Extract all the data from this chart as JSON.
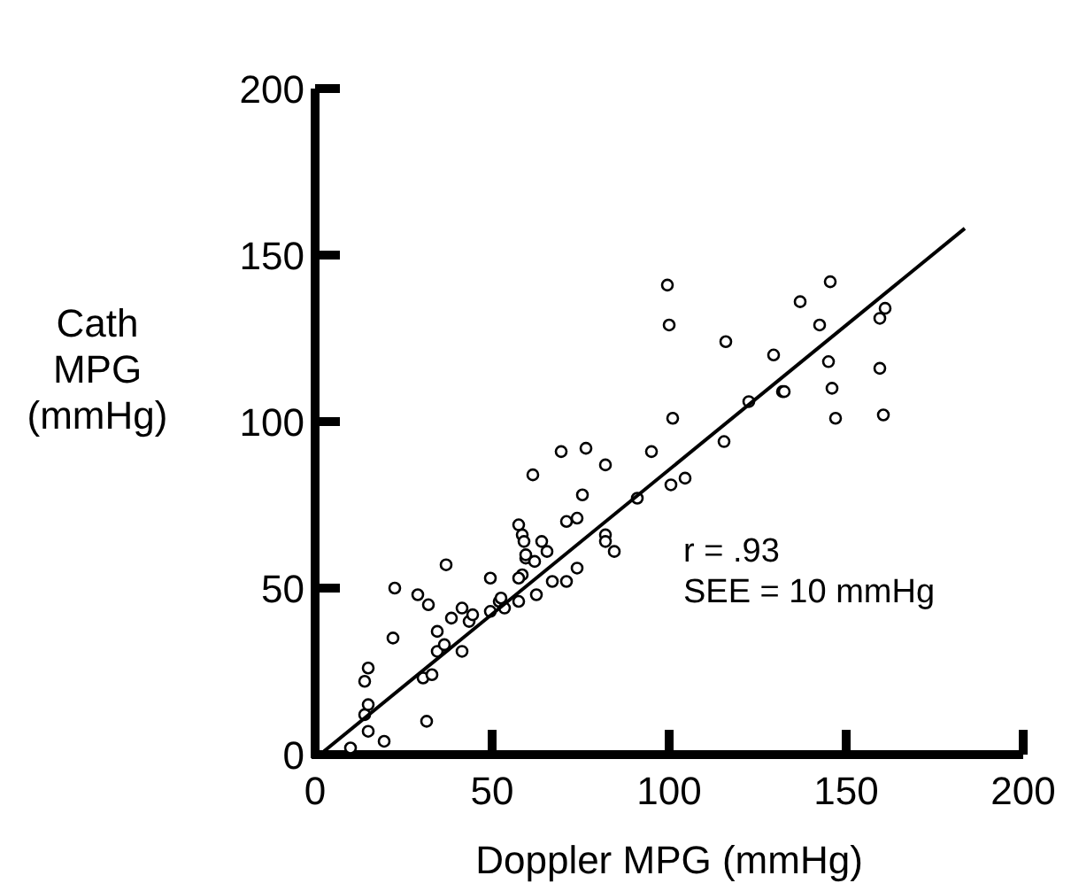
{
  "chart_data": {
    "type": "scatter",
    "xlabel": "Doppler MPG (mmHg)",
    "ylabel": "Cath\nMPG\n(mmHg)",
    "xlim": [
      0,
      200
    ],
    "ylim": [
      0,
      200
    ],
    "xticks": [
      0,
      50,
      100,
      150,
      200
    ],
    "yticks": [
      0,
      50,
      100,
      150,
      200
    ],
    "grid": false,
    "annotations": [
      "r = .93",
      "SEE = 10 mmHg"
    ],
    "series": [
      {
        "color": "#000000",
        "marker": "circle",
        "x": [
          10,
          19.5,
          15,
          14,
          15,
          14,
          15,
          31.5,
          22,
          30.5,
          33,
          34.5,
          34.5,
          36.5,
          41.5,
          38.5,
          41.5,
          43.5,
          44.5,
          22.5,
          29,
          32,
          37,
          49.5,
          49.5,
          52,
          53.5,
          57.5,
          62.5,
          67,
          71,
          58.5,
          59.5,
          69.5,
          76.5,
          82,
          61.5,
          95,
          115.5,
          75.5,
          71,
          74,
          91,
          100.5,
          104.5,
          82,
          82,
          84.5,
          57.5,
          58.5,
          59,
          59.5,
          64,
          65.5,
          62,
          57.5,
          74,
          52.5,
          101,
          122.5,
          132,
          147,
          99.5,
          100,
          116,
          129.5,
          137,
          145.5,
          142.5,
          145,
          146,
          159.5,
          161,
          159.5,
          160.5,
          132.5
        ],
        "values": [
          2,
          4,
          7,
          12,
          15,
          22,
          26,
          10,
          35,
          23,
          24,
          31,
          37,
          33,
          31,
          41,
          44,
          40,
          42,
          50,
          48,
          45,
          57,
          53,
          43,
          46,
          44,
          46,
          48,
          52,
          52,
          54,
          59,
          91,
          92,
          87,
          84,
          91,
          94,
          78,
          70,
          71,
          77,
          81,
          83,
          66,
          64,
          61,
          69,
          66,
          64,
          60,
          64,
          61,
          58,
          53,
          56,
          47,
          101,
          106,
          109,
          101,
          141,
          129,
          124,
          120,
          136,
          142,
          129,
          118,
          110,
          131,
          134,
          116,
          102,
          109
        ]
      },
      {
        "type": "line",
        "color": "#000000",
        "x": [
          2.5,
          183.5
        ],
        "values": [
          1,
          158
        ],
        "marker": "none",
        "line_style": "solid"
      }
    ]
  }
}
